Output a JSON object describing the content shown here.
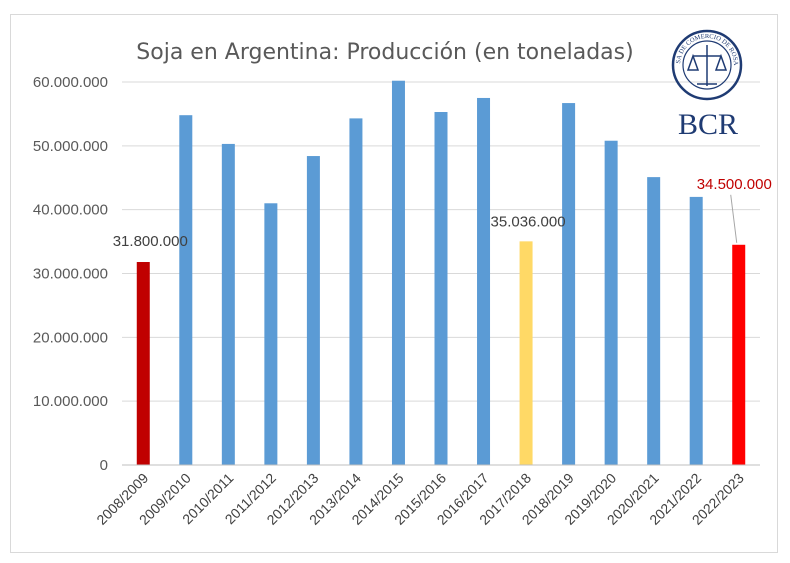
{
  "chart_data": {
    "type": "bar",
    "title": "Soja en Argentina: Producción (en toneladas)",
    "xlabel": "",
    "ylabel": "",
    "ylim": [
      0,
      60000000
    ],
    "yticks": [
      0,
      10000000,
      20000000,
      30000000,
      40000000,
      50000000,
      60000000
    ],
    "ytick_labels": [
      "0",
      "10.000.000",
      "20.000.000",
      "30.000.000",
      "40.000.000",
      "50.000.000",
      "60.000.000"
    ],
    "categories": [
      "2008/2009",
      "2009/2010",
      "2010/2011",
      "2011/2012",
      "2012/2013",
      "2013/2014",
      "2014/2015",
      "2015/2016",
      "2016/2017",
      "2017/2018",
      "2018/2019",
      "2019/2020",
      "2020/2021",
      "2021/2022",
      "2022/2023"
    ],
    "values": [
      31800000,
      54800000,
      50300000,
      41000000,
      48400000,
      54300000,
      60200000,
      55300000,
      57500000,
      35036000,
      56700000,
      50800000,
      45100000,
      42000000,
      34500000
    ],
    "bar_colors": [
      "#c00000",
      "#5b9bd5",
      "#5b9bd5",
      "#5b9bd5",
      "#5b9bd5",
      "#5b9bd5",
      "#5b9bd5",
      "#5b9bd5",
      "#5b9bd5",
      "#ffd966",
      "#5b9bd5",
      "#5b9bd5",
      "#5b9bd5",
      "#5b9bd5",
      "#ff0000"
    ],
    "data_labels": [
      {
        "index": 0,
        "text": "31.800.000",
        "color": "#404040"
      },
      {
        "index": 9,
        "text": "35.036.000",
        "color": "#404040"
      },
      {
        "index": 14,
        "text": "34.500.000",
        "color": "#c00000"
      }
    ],
    "grid": true,
    "legend": "none"
  },
  "logo": {
    "text": "BCR",
    "seal_text": "BOLSA DE COMERCIO DE ROSARIO",
    "color": "#1f3b73"
  }
}
